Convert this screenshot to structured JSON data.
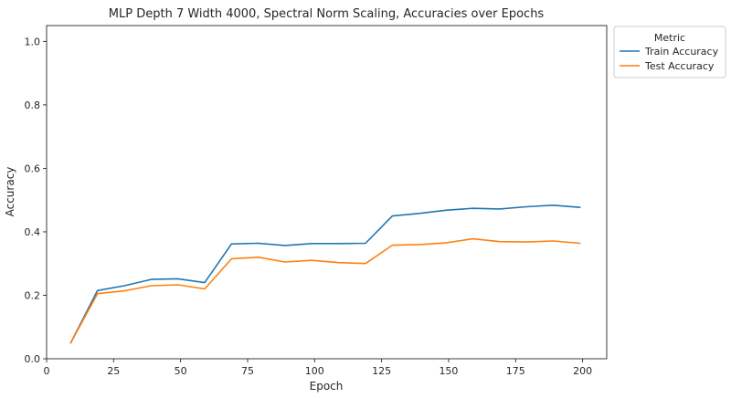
{
  "chart_data": {
    "type": "line",
    "title": "MLP Depth 7 Width 4000, Spectral Norm Scaling, Accuracies over Epochs",
    "xlabel": "Epoch",
    "ylabel": "Accuracy",
    "xlim": [
      0,
      209
    ],
    "ylim": [
      0.0,
      1.05
    ],
    "xticks": [
      0,
      25,
      50,
      75,
      100,
      125,
      150,
      175,
      200
    ],
    "yticks": [
      0.0,
      0.2,
      0.4,
      0.6,
      0.8,
      1.0
    ],
    "grid": false,
    "legend": {
      "title": "Metric",
      "placement": "outside-top-right"
    },
    "x": [
      9,
      19,
      29,
      39,
      49,
      59,
      69,
      79,
      89,
      99,
      109,
      119,
      129,
      139,
      149,
      159,
      169,
      179,
      189,
      199
    ],
    "series": [
      {
        "name": "Train Accuracy",
        "color": "#1f77b4",
        "values": [
          0.05,
          0.215,
          0.23,
          0.25,
          0.252,
          0.24,
          0.362,
          0.364,
          0.357,
          0.363,
          0.363,
          0.364,
          0.45,
          0.458,
          0.468,
          0.474,
          0.472,
          0.479,
          0.484,
          0.477
        ]
      },
      {
        "name": "Test Accuracy",
        "color": "#ff7f0e",
        "values": [
          0.05,
          0.205,
          0.214,
          0.23,
          0.233,
          0.22,
          0.315,
          0.32,
          0.305,
          0.31,
          0.303,
          0.3,
          0.358,
          0.36,
          0.365,
          0.378,
          0.369,
          0.368,
          0.371,
          0.364
        ]
      }
    ]
  }
}
